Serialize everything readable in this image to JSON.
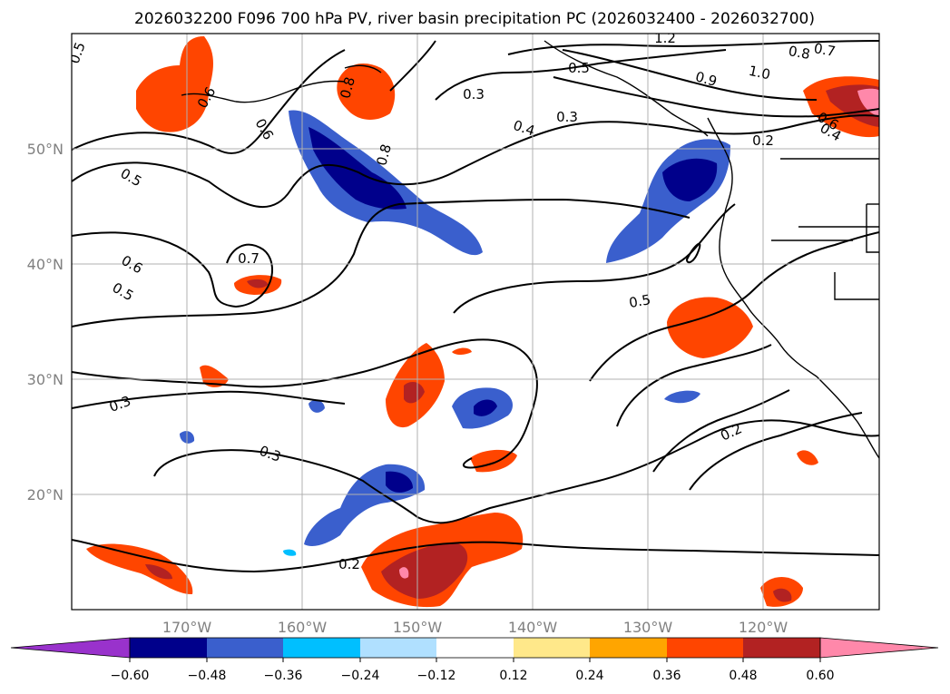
{
  "title": "2026032200 F096 700 hPa PV, river basin precipitation PC (2026032400 - 2026032700)",
  "map": {
    "lon_range": [
      -180,
      -110
    ],
    "lat_range": [
      10,
      60
    ],
    "lat_ticks": [
      {
        "value": 50,
        "label": "50°N"
      },
      {
        "value": 40,
        "label": "40°N"
      },
      {
        "value": 30,
        "label": "30°N"
      },
      {
        "value": 20,
        "label": "20°N"
      }
    ],
    "lon_ticks": [
      {
        "value": -170,
        "label": "170°W"
      },
      {
        "value": -160,
        "label": "160°W"
      },
      {
        "value": -150,
        "label": "150°W"
      },
      {
        "value": -140,
        "label": "140°W"
      },
      {
        "value": -130,
        "label": "130°W"
      },
      {
        "value": -120,
        "label": "120°W"
      }
    ],
    "grid": true,
    "contour_labels": [
      "1.2",
      "0.8",
      "0.7",
      "0.5",
      "1.0",
      "0.9",
      "0.3",
      "0.4",
      "0.3",
      "0.8",
      "0.2",
      "0.6",
      "0.5",
      "0.6",
      "0.4",
      "0.6",
      "0.8",
      "0.5",
      "0.7",
      "0.6",
      "0.5",
      "0.5",
      "0.3",
      "0.3",
      "0.2",
      "0.2"
    ]
  },
  "colorbar": {
    "ticks": [
      "−0.60",
      "−0.48",
      "−0.36",
      "−0.24",
      "−0.12",
      "0.12",
      "0.24",
      "0.36",
      "0.48",
      "0.60"
    ],
    "colors": [
      "#9932cc",
      "#00008b",
      "#3a5fcd",
      "#00bfff",
      "#b0e0ff",
      "#ffffff",
      "#ffe88a",
      "#ffa500",
      "#ff4500",
      "#b22222",
      "#ff88aa"
    ],
    "extend": "both"
  }
}
